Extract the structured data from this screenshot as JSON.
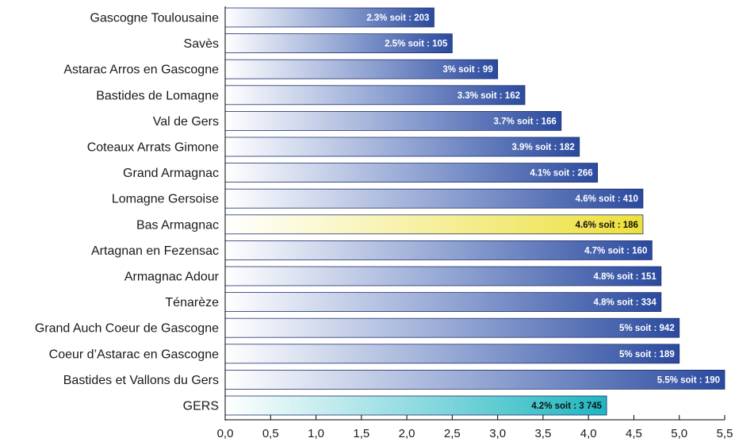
{
  "chart_data": {
    "type": "bar",
    "orientation": "horizontal",
    "categories": [
      "Gascogne Toulousaine",
      "Savès",
      "Astarac Arros en Gascogne",
      "Bastides de Lomagne",
      "Val de Gers",
      "Coteaux Arrats Gimone",
      "Grand Armagnac",
      "Lomagne Gersoise",
      "Bas Armagnac",
      "Artagnan en Fezensac",
      "Armagnac Adour",
      "Ténarèze",
      "Grand Auch Coeur de Gascogne",
      "Coeur d’Astarac en Gascogne",
      "Bastides et Vallons du Gers",
      "GERS"
    ],
    "values": [
      2.3,
      2.5,
      3,
      3.3,
      3.7,
      3.9,
      4.1,
      4.6,
      4.6,
      4.7,
      4.8,
      4.8,
      5,
      5,
      5.5,
      4.2
    ],
    "data_labels": [
      "2.3% soit : 203",
      "2.5% soit : 105",
      "3% soit : 99",
      "3.3% soit : 162",
      "3.7% soit : 166",
      "3.9% soit : 182",
      "4.1% soit : 266",
      "4.6% soit : 410",
      "4.6% soit : 186",
      "4.7% soit : 160",
      "4.8% soit : 151",
      "4.8% soit : 334",
      "5% soit : 942",
      "5% soit : 189",
      "5.5% soit : 190",
      "4.2%  soit : 3 745"
    ],
    "highlight": {
      "Bas Armagnac": "yellow",
      "GERS": "teal"
    },
    "xlim": [
      0,
      5.5
    ],
    "xticks": [
      "0,0",
      "0,5",
      "1,0",
      "1,5",
      "2,0",
      "2,5",
      "3,0",
      "3,5",
      "4,0",
      "4,5",
      "5,0",
      "5,5"
    ],
    "title": "",
    "xlabel": "",
    "ylabel": "",
    "grid": false,
    "colors": {
      "bar_dark": "#2b4a9e",
      "bar_light": "#ffffff",
      "highlight_yellow": "#ede03a",
      "highlight_teal": "#1fb6c0",
      "axis": "#000000"
    }
  }
}
